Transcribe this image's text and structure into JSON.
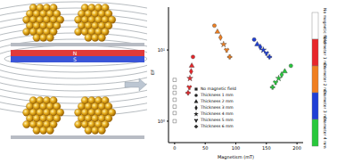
{
  "illustration": {
    "magnet_labels": [
      "N",
      "S"
    ]
  },
  "chart_data": {
    "type": "scatter",
    "x_label": "Magnetism (mT)",
    "y_label": "EF",
    "log": "y",
    "xlim": [
      -10,
      210
    ],
    "xticks": [
      0,
      50,
      100,
      150,
      200
    ],
    "ylim": [
      0.5,
      40
    ],
    "yticks": [
      {
        "value": 1,
        "label": "10⁰"
      },
      {
        "value": 10,
        "label": "10¹"
      }
    ],
    "legend": "bottom",
    "series": [
      {
        "name": "No magnetic field",
        "marker": "square",
        "x": [
          0,
          0,
          0,
          0,
          0,
          0,
          0
        ],
        "values": [
          1.0,
          1.3,
          1.6,
          2.0,
          2.5,
          3.0,
          3.8
        ],
        "colors": [
          "#ffffff",
          "#ffffff",
          "#ffffff",
          "#ffffff",
          "#ffffff",
          "#ffffff",
          "#ffffff"
        ]
      },
      {
        "name": "Thickness 1 mm",
        "marker": "circle",
        "x": [
          30,
          65,
          130,
          190
        ],
        "values": [
          8,
          22,
          14,
          6
        ],
        "colors": [
          "#e8262a",
          "#f07f20",
          "#1f3fd6",
          "#28c83c"
        ]
      },
      {
        "name": "Thickness 2 mm",
        "marker": "triangle",
        "x": [
          28,
          70,
          135,
          180
        ],
        "values": [
          6,
          18,
          12,
          5
        ],
        "colors": [
          "#e8262a",
          "#f07f20",
          "#1f3fd6",
          "#28c83c"
        ]
      },
      {
        "name": "Thickness 3 mm",
        "marker": "diamond",
        "x": [
          27,
          75,
          140,
          175
        ],
        "values": [
          5,
          15,
          11,
          4.5
        ],
        "colors": [
          "#e8262a",
          "#f07f20",
          "#1f3fd6",
          "#28c83c"
        ]
      },
      {
        "name": "Thickness 4 mm",
        "marker": "star",
        "x": [
          25,
          80,
          145,
          170
        ],
        "values": [
          4,
          12,
          10,
          4
        ],
        "colors": [
          "#e8262a",
          "#f07f20",
          "#1f3fd6",
          "#28c83c"
        ]
      },
      {
        "name": "Thickness 5 mm",
        "marker": "wye",
        "x": [
          24,
          85,
          150,
          165
        ],
        "values": [
          3,
          10,
          9,
          3.5
        ],
        "colors": [
          "#e8262a",
          "#f07f20",
          "#1f3fd6",
          "#28c83c"
        ]
      },
      {
        "name": "Thickness 6 mm",
        "marker": "cross",
        "x": [
          22,
          90,
          155,
          160
        ],
        "values": [
          2.5,
          8,
          8,
          3
        ],
        "colors": [
          "#e8262a",
          "#f07f20",
          "#1f3fd6",
          "#28c83c"
        ]
      }
    ],
    "colorbar": {
      "labels": [
        "No magnetic field",
        "Diameter 1 mm",
        "Diameter 2 mm",
        "Diameter 3 mm",
        "Diameter 4 mm"
      ],
      "colors": [
        "#ffffff",
        "#e8262a",
        "#f07f20",
        "#1f3fd6",
        "#28c83c"
      ]
    }
  }
}
